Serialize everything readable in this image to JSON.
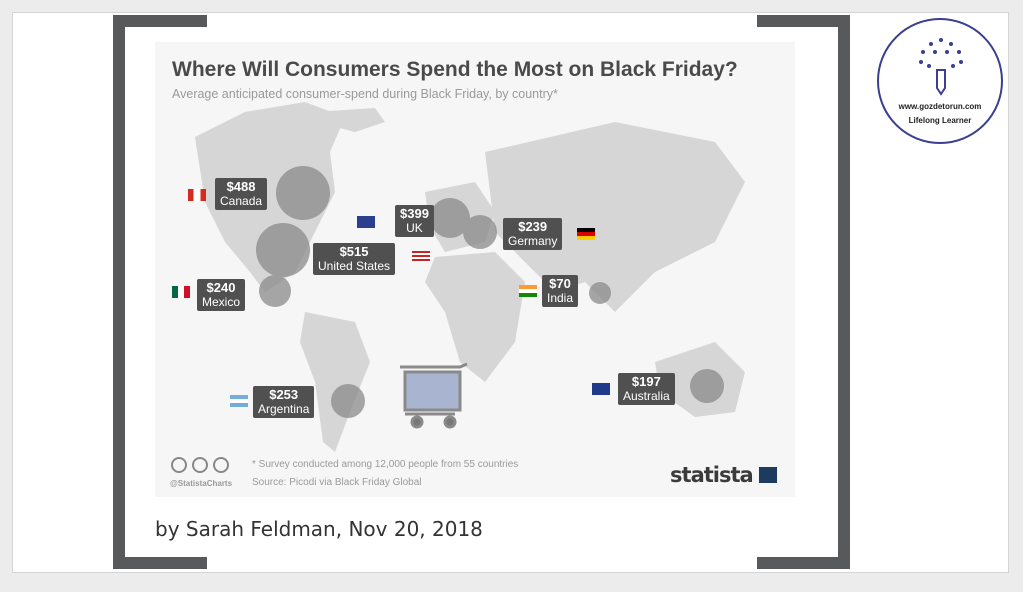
{
  "chart": {
    "title": "Where Will Consumers Spend the Most on Black Friday?",
    "subtitle": "Average anticipated consumer-spend during Black Friday, by country*",
    "footnote": "* Survey conducted among 12,000 people from 55 countries",
    "source": "Source: Picodi via Black Friday Global",
    "handle": "@StatistaCharts",
    "brand": "statista"
  },
  "chart_data": {
    "type": "bubble-map",
    "title": "Where Will Consumers Spend the Most on Black Friday?",
    "unit": "USD",
    "points": [
      {
        "country": "Canada",
        "value": 488,
        "label": "$488"
      },
      {
        "country": "UK",
        "value": 399,
        "label": "$399"
      },
      {
        "country": "Germany",
        "value": 239,
        "label": "$239"
      },
      {
        "country": "United States",
        "value": 515,
        "label": "$515"
      },
      {
        "country": "Mexico",
        "value": 240,
        "label": "$240"
      },
      {
        "country": "India",
        "value": 70,
        "label": "$70"
      },
      {
        "country": "Argentina",
        "value": 253,
        "label": "$253"
      },
      {
        "country": "Australia",
        "value": 197,
        "label": "$197"
      }
    ]
  },
  "byline": "by Sarah Feldman, Nov 20, 2018",
  "logo": {
    "url": "www.gozdetorun.com",
    "tagline": "Lifelong Learner"
  },
  "colors": {
    "bracket": "#58595b",
    "label_bg": "#505050",
    "logo": "#3b3f8f"
  }
}
